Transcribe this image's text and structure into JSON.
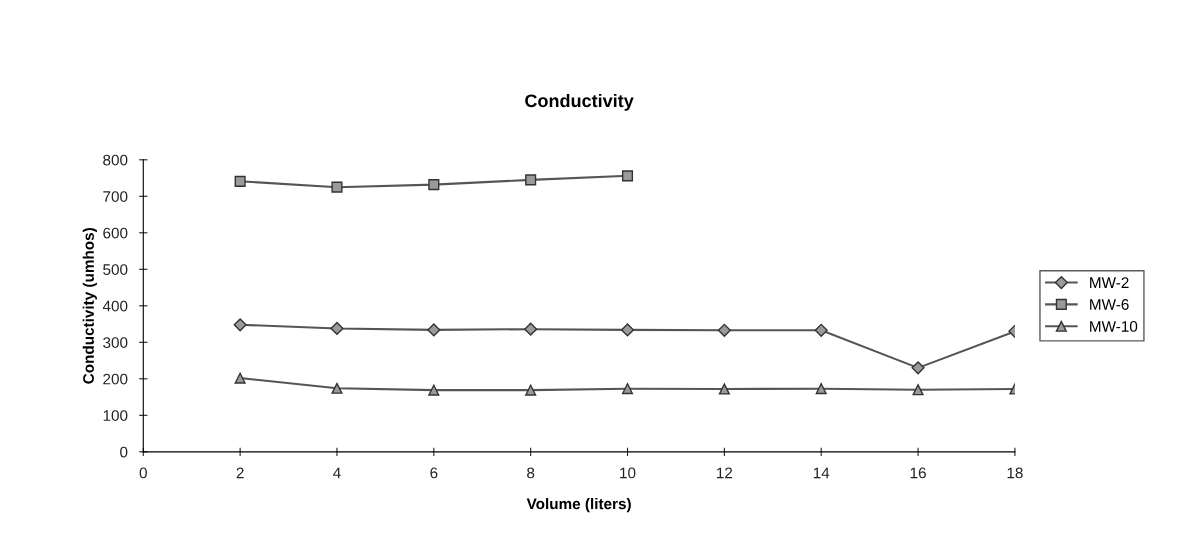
{
  "chart_data": {
    "type": "line",
    "title": "Conductivity",
    "xlabel": "Volume (liters)",
    "ylabel": "Conductivity (umhos)",
    "xlim": [
      0,
      18
    ],
    "xticks": [
      0,
      2,
      4,
      6,
      8,
      10,
      12,
      14,
      16,
      18
    ],
    "ylim": [
      0,
      800
    ],
    "yticks": [
      0,
      100,
      200,
      300,
      400,
      500,
      600,
      700,
      800
    ],
    "grid": false,
    "legend": "right",
    "line_style": "solid",
    "series": [
      {
        "name": "MW-2",
        "color": "#555555",
        "marker": "diamond",
        "x": [
          2,
          4,
          6,
          8,
          10,
          12,
          14,
          16,
          18
        ],
        "values": [
          348,
          338,
          334,
          336,
          334,
          333,
          333,
          230,
          330
        ]
      },
      {
        "name": "MW-6",
        "color": "#555555",
        "marker": "square",
        "x": [
          2,
          4,
          6,
          8,
          10
        ],
        "values": [
          741,
          725,
          732,
          745,
          756
        ]
      },
      {
        "name": "MW-10",
        "color": "#555555",
        "marker": "triangle",
        "x": [
          2,
          4,
          6,
          8,
          10,
          12,
          14,
          16,
          18
        ],
        "values": [
          202,
          174,
          169,
          169,
          173,
          172,
          173,
          170,
          172
        ]
      }
    ]
  }
}
